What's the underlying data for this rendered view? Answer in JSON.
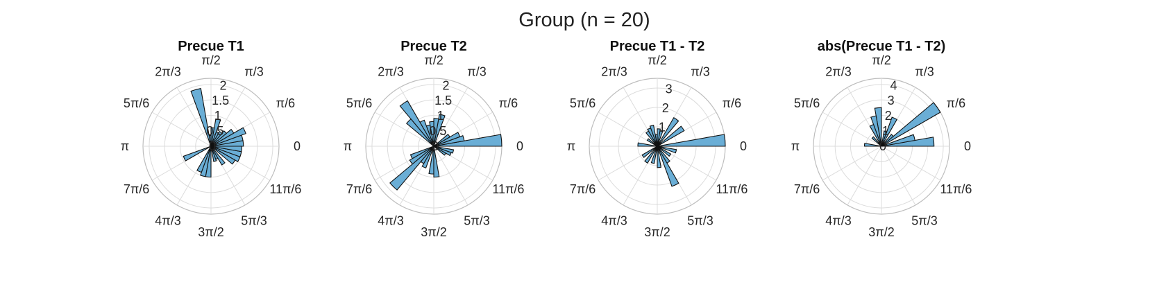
{
  "figure_title": "Group (n = 20)",
  "colors": {
    "bar_fill": "#6aaed6",
    "bar_edge": "#111111",
    "grid": "#dcdcdc"
  },
  "chart_data": [
    {
      "type": "polar-histogram",
      "title": "Precue T1",
      "theta_tick_labels": [
        "0",
        "π/6",
        "π/3",
        "π/2",
        "2π/3",
        "5π/6",
        "π",
        "7π/6",
        "4π/3",
        "3π/2",
        "5π/3",
        "11π/6"
      ],
      "r_ticks": [
        0,
        0.5,
        1,
        1.5,
        2
      ],
      "r_tick_labels": [
        "0",
        "0.5",
        "1",
        "1.5",
        "2"
      ],
      "rlim": [
        0,
        2.2
      ],
      "bin_count": 36,
      "bin_width_deg": 10,
      "bins": [
        {
          "center_deg": 5,
          "value": 1.05
        },
        {
          "center_deg": 15,
          "value": 1.05
        },
        {
          "center_deg": 25,
          "value": 1.2
        },
        {
          "center_deg": 35,
          "value": 0.85
        },
        {
          "center_deg": 45,
          "value": 0.65
        },
        {
          "center_deg": 55,
          "value": 0.55
        },
        {
          "center_deg": 65,
          "value": 0.5
        },
        {
          "center_deg": 75,
          "value": 0.9
        },
        {
          "center_deg": 85,
          "value": 0.6
        },
        {
          "center_deg": 95,
          "value": 0.35
        },
        {
          "center_deg": 105,
          "value": 1.9
        },
        {
          "center_deg": 205,
          "value": 0.95
        },
        {
          "center_deg": 245,
          "value": 0.9
        },
        {
          "center_deg": 255,
          "value": 1.0
        },
        {
          "center_deg": 265,
          "value": 1.0
        },
        {
          "center_deg": 285,
          "value": 0.5
        },
        {
          "center_deg": 295,
          "value": 0.45
        },
        {
          "center_deg": 305,
          "value": 0.7
        },
        {
          "center_deg": 325,
          "value": 0.9
        },
        {
          "center_deg": 335,
          "value": 1.0
        },
        {
          "center_deg": 345,
          "value": 1.0
        },
        {
          "center_deg": 355,
          "value": 1.0
        }
      ]
    },
    {
      "type": "polar-histogram",
      "title": "Precue T2",
      "theta_tick_labels": [
        "0",
        "π/6",
        "π/3",
        "π/2",
        "2π/3",
        "5π/6",
        "π",
        "7π/6",
        "4π/3",
        "3π/2",
        "5π/3",
        "11π/6"
      ],
      "r_ticks": [
        0,
        0.5,
        1,
        1.5,
        2
      ],
      "r_tick_labels": [
        "0",
        "0.5",
        "1",
        "1.5",
        "2"
      ],
      "rlim": [
        0,
        2.2
      ],
      "bin_count": 36,
      "bin_width_deg": 10,
      "bins": [
        {
          "center_deg": 5,
          "value": 2.2
        },
        {
          "center_deg": 15,
          "value": 1.0
        },
        {
          "center_deg": 25,
          "value": 0.9
        },
        {
          "center_deg": 35,
          "value": 0.6
        },
        {
          "center_deg": 75,
          "value": 1.05
        },
        {
          "center_deg": 85,
          "value": 0.9
        },
        {
          "center_deg": 95,
          "value": 0.8
        },
        {
          "center_deg": 105,
          "value": 0.7
        },
        {
          "center_deg": 115,
          "value": 0.9
        },
        {
          "center_deg": 125,
          "value": 1.7
        },
        {
          "center_deg": 135,
          "value": 1.15
        },
        {
          "center_deg": 205,
          "value": 0.8
        },
        {
          "center_deg": 215,
          "value": 0.9
        },
        {
          "center_deg": 225,
          "value": 1.85
        },
        {
          "center_deg": 235,
          "value": 0.65
        },
        {
          "center_deg": 245,
          "value": 0.75
        },
        {
          "center_deg": 265,
          "value": 0.9
        },
        {
          "center_deg": 275,
          "value": 1.0
        },
        {
          "center_deg": 325,
          "value": 0.45
        },
        {
          "center_deg": 335,
          "value": 0.6
        },
        {
          "center_deg": 345,
          "value": 0.65
        }
      ]
    },
    {
      "type": "polar-histogram",
      "title": "Precue T1 - T2",
      "theta_tick_labels": [
        "0",
        "π/6",
        "π/3",
        "π/2",
        "2π/3",
        "5π/6",
        "π",
        "7π/6",
        "4π/3",
        "3π/2",
        "5π/3",
        "11π/6"
      ],
      "r_ticks": [
        0,
        1,
        2,
        3
      ],
      "r_tick_labels": [
        "",
        "1",
        "2",
        "3"
      ],
      "rlim": [
        0,
        3.5
      ],
      "bin_count": 36,
      "bin_width_deg": 10,
      "bins": [
        {
          "center_deg": 5,
          "value": 3.5
        },
        {
          "center_deg": 35,
          "value": 1.6
        },
        {
          "center_deg": 55,
          "value": 1.7
        },
        {
          "center_deg": 75,
          "value": 0.8
        },
        {
          "center_deg": 85,
          "value": 0.9
        },
        {
          "center_deg": 95,
          "value": 0.6
        },
        {
          "center_deg": 105,
          "value": 1.1
        },
        {
          "center_deg": 115,
          "value": 1.0
        },
        {
          "center_deg": 125,
          "value": 0.9
        },
        {
          "center_deg": 145,
          "value": 0.6
        },
        {
          "center_deg": 175,
          "value": 1.0
        },
        {
          "center_deg": 215,
          "value": 0.9
        },
        {
          "center_deg": 235,
          "value": 1.0
        },
        {
          "center_deg": 255,
          "value": 0.9
        },
        {
          "center_deg": 275,
          "value": 1.1
        },
        {
          "center_deg": 295,
          "value": 2.2
        },
        {
          "center_deg": 305,
          "value": 1.0
        },
        {
          "center_deg": 325,
          "value": 0.8
        },
        {
          "center_deg": 345,
          "value": 1.0
        }
      ]
    },
    {
      "type": "polar-histogram",
      "title": "abs(Precue T1 - T2)",
      "theta_tick_labels": [
        "0",
        "π/6",
        "π/3",
        "π/2",
        "2π/3",
        "5π/6",
        "π",
        "7π/6",
        "4π/3",
        "3π/2",
        "5π/3",
        "11π/6"
      ],
      "r_ticks": [
        0,
        1,
        2,
        3,
        4
      ],
      "r_tick_labels": [
        "0",
        "1",
        "2",
        "3",
        "4"
      ],
      "rlim": [
        0,
        4.4
      ],
      "bin_count": 36,
      "bin_width_deg": 10,
      "bins": [
        {
          "center_deg": 5,
          "value": 3.4
        },
        {
          "center_deg": 15,
          "value": 2.2
        },
        {
          "center_deg": 35,
          "value": 4.4
        },
        {
          "center_deg": 45,
          "value": 1.0
        },
        {
          "center_deg": 65,
          "value": 2.0
        },
        {
          "center_deg": 75,
          "value": 1.0
        },
        {
          "center_deg": 95,
          "value": 2.5
        },
        {
          "center_deg": 105,
          "value": 2.0
        },
        {
          "center_deg": 115,
          "value": 1.5
        },
        {
          "center_deg": 135,
          "value": 0.8
        },
        {
          "center_deg": 175,
          "value": 1.1
        }
      ]
    }
  ]
}
